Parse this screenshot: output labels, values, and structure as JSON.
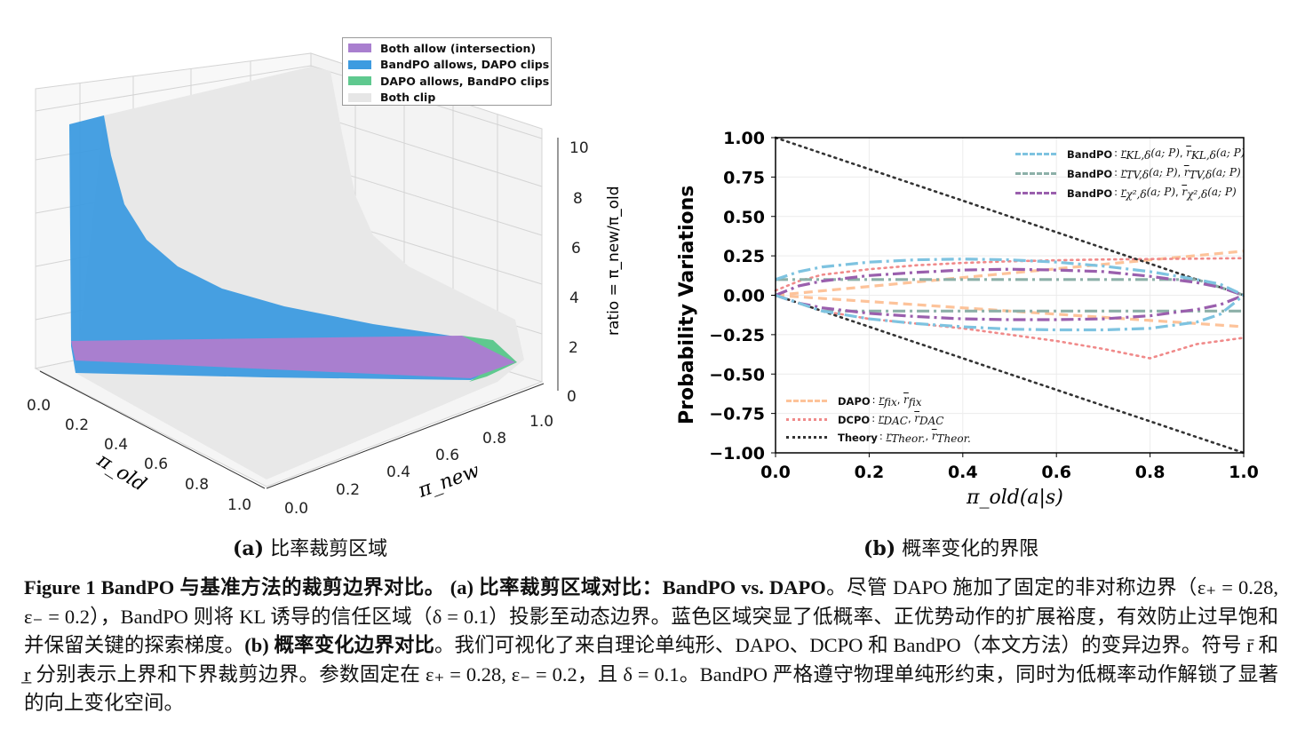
{
  "figure": {
    "subcaption_a": {
      "label": "(a)",
      "text": "比率裁剪区域"
    },
    "subcaption_b": {
      "label": "(b)",
      "text": "概率变化的界限"
    },
    "caption": {
      "bold1": "Figure 1  BandPO 与基准方法的裁剪边界对比。",
      "bold2": "(a) 比率裁剪区域对比：BandPO vs. DAPO",
      "text1": "。尽管 DAPO 施加了固定的非对称边界（ε₊ = 0.28, ε₋ = 0.2），BandPO 则将 KL 诱导的信任区域（δ = 0.1）投影至动态边界。蓝色区域突显了低概率、正优势动作的扩展裕度，有效防止过早饱和并保留关键的探索梯度。",
      "bold3": "(b) 概率变化边界对比",
      "text2": "。我们可视化了来自理论单纯形、DAPO、DCPO 和 BandPO（本文方法）的变异边界。符号 r̄ 和 r̲ 分别表示上界和下界裁剪边界。参数固定在 ε₊ = 0.28, ε₋ = 0.2，且 δ = 0.1。BandPO 严格遵守物理单纯形约束，同时为低概率动作解锁了显著的向上变化空间。"
    }
  },
  "chart_data": [
    {
      "type": "surface",
      "xlabel": "π_old",
      "ylabel": "π_new",
      "zlabel": "ratio = π_new/π_old",
      "x_ticks": [
        "0.0",
        "0.2",
        "0.4",
        "0.6",
        "0.8",
        "1.0"
      ],
      "y_ticks": [
        "0.0",
        "0.2",
        "0.4",
        "0.6",
        "0.8",
        "1.0"
      ],
      "z_ticks": [
        "0",
        "2",
        "4",
        "6",
        "8",
        "10"
      ],
      "zlim": [
        0,
        10
      ],
      "legend_position": "top-right",
      "legend": [
        {
          "label": "Both allow (intersection)",
          "color": "#a97fcf"
        },
        {
          "label": "BandPO allows, DAPO clips",
          "color": "#3d9be0"
        },
        {
          "label": "DAPO allows, BandPO clips",
          "color": "#5fc98f"
        },
        {
          "label": "Both clip",
          "color": "#e6e6e6"
        }
      ]
    },
    {
      "type": "line",
      "xlabel": "π_old(a|s)",
      "ylabel": "Probability Variations",
      "xlim": [
        0,
        1
      ],
      "ylim": [
        -1,
        1
      ],
      "x_ticks": [
        "0.0",
        "0.2",
        "0.4",
        "0.6",
        "0.8",
        "1.0"
      ],
      "y_ticks": [
        "1.00",
        "0.75",
        "0.50",
        "0.25",
        "0.00",
        "−0.25",
        "−0.50",
        "−0.75",
        "−1.00"
      ],
      "grid": true,
      "x": [
        0,
        0.05,
        0.1,
        0.2,
        0.3,
        0.4,
        0.5,
        0.6,
        0.7,
        0.8,
        0.9,
        0.95,
        1.0
      ],
      "series": [
        {
          "name": "BandPO",
          "math": "KL,δ",
          "color": "#7ec3e0",
          "style": "dashdot",
          "upper": [
            0.1,
            0.15,
            0.18,
            0.21,
            0.225,
            0.23,
            0.225,
            0.21,
            0.185,
            0.15,
            0.1,
            0.07,
            0
          ],
          "lower": [
            0,
            -0.05,
            -0.1,
            -0.15,
            -0.18,
            -0.2,
            -0.215,
            -0.22,
            -0.22,
            -0.21,
            -0.17,
            -0.12,
            0
          ]
        },
        {
          "name": "BandPO",
          "math": "TV,δ",
          "color": "#8cb0a8",
          "style": "dashdot",
          "upper": [
            0.1,
            0.1,
            0.1,
            0.1,
            0.1,
            0.1,
            0.1,
            0.1,
            0.1,
            0.1,
            0.1,
            0.05,
            0
          ],
          "lower": [
            0,
            -0.05,
            -0.1,
            -0.1,
            -0.1,
            -0.1,
            -0.1,
            -0.1,
            -0.1,
            -0.1,
            -0.1,
            -0.1,
            -0.1
          ]
        },
        {
          "name": "BandPO",
          "math": "χ²,δ",
          "color": "#9a5fad",
          "style": "dashdot",
          "upper": [
            0,
            0.06,
            0.09,
            0.125,
            0.145,
            0.16,
            0.165,
            0.16,
            0.15,
            0.12,
            0.08,
            0.05,
            0
          ],
          "lower": [
            0,
            -0.05,
            -0.08,
            -0.115,
            -0.135,
            -0.15,
            -0.155,
            -0.155,
            -0.15,
            -0.13,
            -0.09,
            -0.06,
            0
          ]
        },
        {
          "name": "DAPO",
          "math": "fix",
          "color": "#fdc39a",
          "style": "dashed",
          "upper": [
            0,
            0.014,
            0.028,
            0.056,
            0.084,
            0.112,
            0.14,
            0.168,
            0.196,
            0.2,
            0.1,
            0.05,
            0
          ],
          "upper_full": [
            0,
            0.014,
            0.028,
            0.056,
            0.084,
            0.112,
            0.14,
            0.168,
            0.196,
            0.224,
            0.252,
            0.266,
            0.28
          ],
          "lower": [
            0,
            -0.01,
            -0.02,
            -0.04,
            -0.06,
            -0.08,
            -0.1,
            -0.12,
            -0.14,
            -0.16,
            -0.18,
            -0.19,
            -0.2
          ]
        },
        {
          "name": "DCPO",
          "math": "DAC",
          "color": "#f08a8a",
          "style": "dotted",
          "upper": [
            0.03,
            0.09,
            0.13,
            0.165,
            0.19,
            0.205,
            0.215,
            0.222,
            0.227,
            0.23,
            0.232,
            0.234,
            0.235
          ],
          "lower": [
            0,
            -0.05,
            -0.1,
            -0.15,
            -0.18,
            -0.21,
            -0.25,
            -0.29,
            -0.34,
            -0.4,
            -0.31,
            -0.29,
            -0.27
          ]
        },
        {
          "name": "Theory",
          "math": "Theor.",
          "color": "#333333",
          "style": "dotted",
          "upper": [
            1,
            0.95,
            0.9,
            0.8,
            0.7,
            0.6,
            0.5,
            0.4,
            0.3,
            0.2,
            0.1,
            0.05,
            0
          ],
          "lower": [
            0,
            -0.05,
            -0.1,
            -0.2,
            -0.3,
            -0.4,
            -0.5,
            -0.6,
            -0.7,
            -0.8,
            -0.9,
            -0.95,
            -1
          ]
        }
      ],
      "legend_arg": "(a; P)"
    }
  ]
}
